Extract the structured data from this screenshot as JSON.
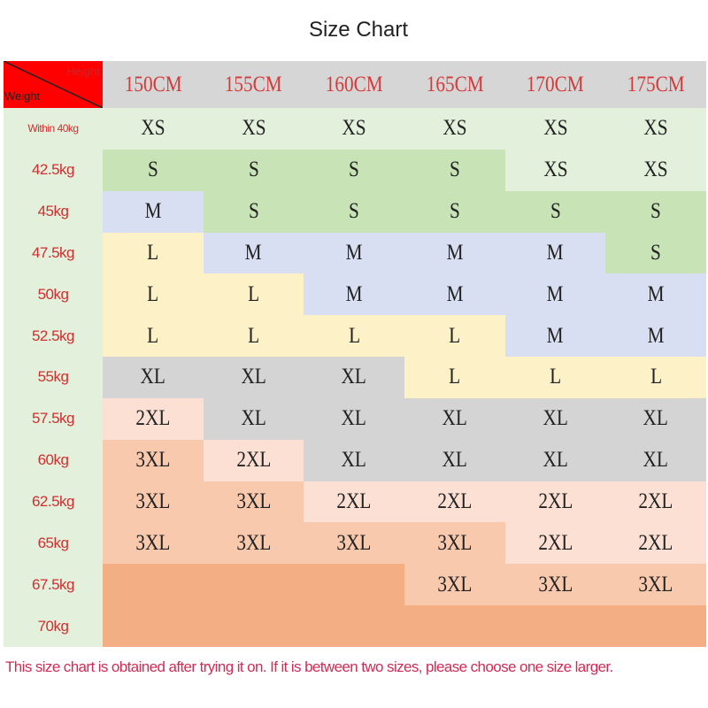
{
  "title": "Size Chart",
  "corner": {
    "height_label": "Height",
    "weight_label": "Weight"
  },
  "colors": {
    "lightgreen": "#e3f0dc",
    "green": "#c8e3b5",
    "blue": "#d9dff2",
    "yellow": "#fdf1c8",
    "gray": "#d4d4d4",
    "pink": "#fde0d4",
    "salmon": "#f9c9ae",
    "orange": "#f4ae84"
  },
  "heights": [
    "150CM",
    "155CM",
    "160CM",
    "165CM",
    "170CM",
    "175CM"
  ],
  "rows": [
    {
      "weight": "Within 40kg",
      "sizes": [
        "XS",
        "XS",
        "XS",
        "XS",
        "XS",
        "XS"
      ],
      "colors": [
        "lightgreen",
        "lightgreen",
        "lightgreen",
        "lightgreen",
        "lightgreen",
        "lightgreen"
      ]
    },
    {
      "weight": "42.5kg",
      "sizes": [
        "S",
        "S",
        "S",
        "S",
        "XS",
        "XS"
      ],
      "colors": [
        "green",
        "green",
        "green",
        "green",
        "lightgreen",
        "lightgreen"
      ]
    },
    {
      "weight": "45kg",
      "sizes": [
        "M",
        "S",
        "S",
        "S",
        "S",
        "S"
      ],
      "colors": [
        "blue",
        "green",
        "green",
        "green",
        "green",
        "green"
      ]
    },
    {
      "weight": "47.5kg",
      "sizes": [
        "L",
        "M",
        "M",
        "M",
        "M",
        "S"
      ],
      "colors": [
        "yellow",
        "blue",
        "blue",
        "blue",
        "blue",
        "green"
      ]
    },
    {
      "weight": "50kg",
      "sizes": [
        "L",
        "L",
        "M",
        "M",
        "M",
        "M"
      ],
      "colors": [
        "yellow",
        "yellow",
        "blue",
        "blue",
        "blue",
        "blue"
      ]
    },
    {
      "weight": "52.5kg",
      "sizes": [
        "L",
        "L",
        "L",
        "L",
        "M",
        "M"
      ],
      "colors": [
        "yellow",
        "yellow",
        "yellow",
        "yellow",
        "blue",
        "blue"
      ]
    },
    {
      "weight": "55kg",
      "sizes": [
        "XL",
        "XL",
        "XL",
        "L",
        "L",
        "L"
      ],
      "colors": [
        "gray",
        "gray",
        "gray",
        "yellow",
        "yellow",
        "yellow"
      ]
    },
    {
      "weight": "57.5kg",
      "sizes": [
        "2XL",
        "XL",
        "XL",
        "XL",
        "XL",
        "XL"
      ],
      "colors": [
        "pink",
        "gray",
        "gray",
        "gray",
        "gray",
        "gray"
      ]
    },
    {
      "weight": "60kg",
      "sizes": [
        "3XL",
        "2XL",
        "XL",
        "XL",
        "XL",
        "XL"
      ],
      "colors": [
        "salmon",
        "pink",
        "gray",
        "gray",
        "gray",
        "gray"
      ]
    },
    {
      "weight": "62.5kg",
      "sizes": [
        "3XL",
        "3XL",
        "2XL",
        "2XL",
        "2XL",
        "2XL"
      ],
      "colors": [
        "salmon",
        "salmon",
        "pink",
        "pink",
        "pink",
        "pink"
      ]
    },
    {
      "weight": "65kg",
      "sizes": [
        "3XL",
        "3XL",
        "3XL",
        "3XL",
        "2XL",
        "2XL"
      ],
      "colors": [
        "salmon",
        "salmon",
        "salmon",
        "salmon",
        "pink",
        "pink"
      ]
    },
    {
      "weight": "67.5kg",
      "sizes": [
        "",
        "",
        "",
        "3XL",
        "3XL",
        "3XL"
      ],
      "colors": [
        "orange",
        "orange",
        "orange",
        "salmon",
        "salmon",
        "salmon"
      ]
    },
    {
      "weight": "70kg",
      "sizes": [
        "",
        "",
        "",
        "",
        "",
        ""
      ],
      "colors": [
        "orange",
        "orange",
        "orange",
        "orange",
        "orange",
        "orange"
      ]
    }
  ],
  "note": "This size chart is obtained after trying it on. If it is between two sizes, please choose one size larger."
}
